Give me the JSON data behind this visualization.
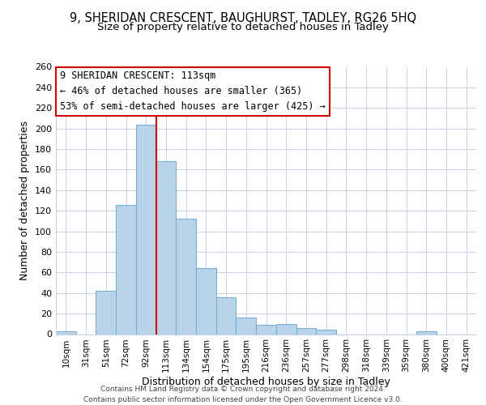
{
  "title": "9, SHERIDAN CRESCENT, BAUGHURST, TADLEY, RG26 5HQ",
  "subtitle": "Size of property relative to detached houses in Tadley",
  "xlabel": "Distribution of detached houses by size in Tadley",
  "ylabel": "Number of detached properties",
  "footnote1": "Contains HM Land Registry data © Crown copyright and database right 2024.",
  "footnote2": "Contains public sector information licensed under the Open Government Licence v3.0.",
  "categories": [
    "10sqm",
    "31sqm",
    "51sqm",
    "72sqm",
    "92sqm",
    "113sqm",
    "134sqm",
    "154sqm",
    "175sqm",
    "195sqm",
    "216sqm",
    "236sqm",
    "257sqm",
    "277sqm",
    "298sqm",
    "318sqm",
    "339sqm",
    "359sqm",
    "380sqm",
    "400sqm",
    "421sqm"
  ],
  "values": [
    3,
    0,
    42,
    126,
    204,
    168,
    112,
    64,
    36,
    16,
    9,
    10,
    6,
    4,
    0,
    0,
    0,
    0,
    3,
    0,
    0
  ],
  "bar_color": "#b8d4ea",
  "bar_edge_color": "#7aafd4",
  "vline_x": 5,
  "vline_color": "#cc0000",
  "annotation_title": "9 SHERIDAN CRESCENT: 113sqm",
  "annotation_line1": "← 46% of detached houses are smaller (365)",
  "annotation_line2": "53% of semi-detached houses are larger (425) →",
  "annotation_box_color": "#ffffff",
  "annotation_box_edge": "#cc0000",
  "ylim": [
    0,
    260
  ],
  "yticks": [
    0,
    20,
    40,
    60,
    80,
    100,
    120,
    140,
    160,
    180,
    200,
    220,
    240,
    260
  ],
  "background_color": "#ffffff",
  "grid_color": "#c8d4e4"
}
